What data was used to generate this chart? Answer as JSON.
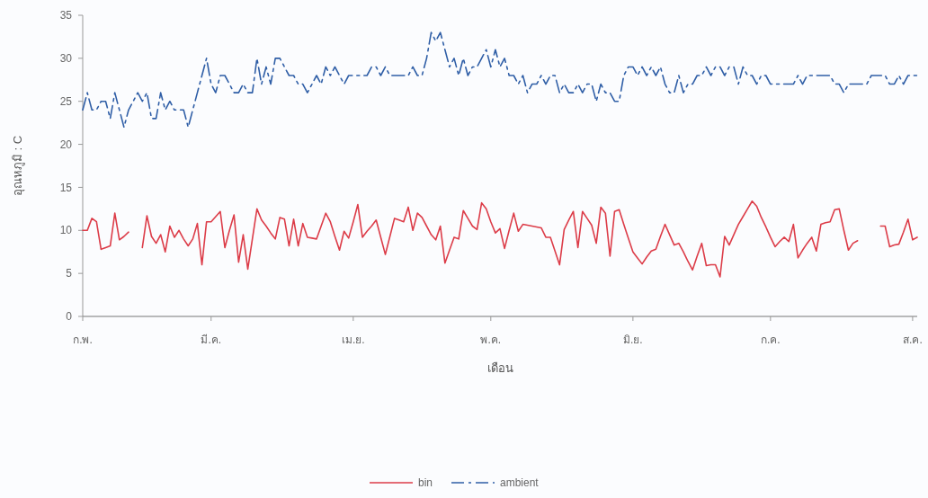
{
  "chart_data": {
    "type": "line",
    "xlabel": "เดือน",
    "ylabel": "อุณหภูมิ : C",
    "categories": [
      "ก.พ.",
      null,
      null,
      null,
      null,
      null,
      null,
      null,
      null,
      null,
      null,
      null,
      null,
      null,
      null,
      null,
      null,
      null,
      null,
      null,
      null,
      null,
      null,
      null,
      null,
      null,
      null,
      null,
      "มี.ค.",
      null,
      null,
      null,
      null,
      null,
      null,
      null,
      null,
      null,
      null,
      null,
      null,
      null,
      null,
      null,
      null,
      null,
      null,
      null,
      null,
      null,
      null,
      null,
      null,
      null,
      null,
      null,
      null,
      null,
      null,
      "เม.ย.",
      null,
      null,
      null,
      null,
      null,
      null,
      null,
      null,
      null,
      null,
      null,
      null,
      null,
      null,
      null,
      null,
      null,
      null,
      null,
      null,
      null,
      null,
      null,
      null,
      null,
      null,
      null,
      null,
      null,
      "พ.ค.",
      null,
      null,
      null,
      null,
      null,
      null,
      null,
      null,
      null,
      null,
      null,
      null,
      null,
      null,
      null,
      null,
      null,
      null,
      null,
      null,
      null,
      null,
      null,
      null,
      null,
      null,
      null,
      null,
      null,
      null,
      "มิ.ย.",
      null,
      null,
      null,
      null,
      null,
      null,
      null,
      null,
      null,
      null,
      null,
      null,
      null,
      null,
      null,
      null,
      null,
      null,
      null,
      null,
      null,
      null,
      null,
      null,
      null,
      null,
      null,
      null,
      null,
      "ก.ค.",
      null,
      null,
      null,
      null,
      null,
      null,
      null,
      null,
      null,
      null,
      null,
      null,
      null,
      null,
      null,
      null,
      null,
      null,
      null,
      null,
      null,
      null,
      null,
      null,
      null,
      null,
      null,
      null,
      null,
      null,
      "ส.ค.",
      null
    ],
    "ylim": [
      0,
      35
    ],
    "yticks": [
      0,
      5,
      10,
      15,
      20,
      25,
      30,
      35
    ],
    "grid": false,
    "legend": "bottom",
    "marker": "none",
    "series": [
      {
        "name": "bin",
        "color": "#dc3c48",
        "line_style": "solid",
        "values": [
          10,
          10,
          11.4,
          11,
          7.8,
          8,
          8.2,
          12,
          8.9,
          9.3,
          9.8,
          null,
          null,
          8,
          11.7,
          9.3,
          8.5,
          9.5,
          7.5,
          10.5,
          9.2,
          10,
          9,
          8.2,
          9,
          10.8,
          6,
          11,
          11,
          11.6,
          12.2,
          8,
          10,
          11.8,
          6.3,
          9.5,
          5.5,
          9,
          12.5,
          11.2,
          10.5,
          9.7,
          9,
          11.5,
          11.3,
          8.2,
          11.3,
          8.2,
          10.8,
          9.2,
          9.1,
          9,
          10.5,
          12,
          11,
          9.3,
          7.7,
          9.9,
          9.1,
          11,
          13,
          9.2,
          9.9,
          10.5,
          11.2,
          9.2,
          7.2,
          9.3,
          11.4,
          11.2,
          11,
          12.7,
          10,
          12,
          11.5,
          10.5,
          9.5,
          8.9,
          10.5,
          6.2,
          7.7,
          9.2,
          9,
          12.3,
          11.4,
          10.5,
          10.1,
          13.2,
          12.5,
          11,
          9.7,
          10.2,
          7.9,
          10,
          12,
          9.9,
          10.7,
          10.6,
          10.5,
          10.4,
          10.3,
          9.2,
          9.2,
          7.6,
          6,
          10.1,
          11.2,
          12.2,
          8,
          12.2,
          11.4,
          10.6,
          8.5,
          12.7,
          12,
          7,
          12.2,
          12.4,
          10.7,
          9.1,
          7.5,
          6.8,
          6.1,
          6.9,
          7.6,
          7.8,
          9.3,
          10.7,
          9.5,
          8.3,
          8.5,
          7.5,
          6.4,
          5.4,
          7,
          8.5,
          5.9,
          6,
          6,
          4.6,
          9.3,
          8.3,
          9.5,
          10.7,
          11.6,
          12.5,
          13.4,
          12.8,
          11.5,
          10.4,
          9.2,
          8.1,
          8.7,
          9.2,
          8.7,
          10.7,
          6.8,
          7.7,
          8.5,
          9.2,
          7.6,
          10.7,
          10.9,
          11,
          12.4,
          12.5,
          10,
          7.7,
          8.5,
          8.8,
          null,
          null,
          null,
          null,
          10.5,
          10.5,
          8.1,
          8.3,
          8.4,
          9.8,
          11.3,
          8.9,
          9.2
        ]
      },
      {
        "name": "ambient",
        "color": "#2f5ea6",
        "line_style": "dashed",
        "values": [
          24,
          26,
          24,
          24,
          25,
          25,
          23,
          26,
          24,
          22,
          24,
          25,
          26,
          25,
          26,
          23,
          23,
          26,
          24,
          25,
          24,
          24,
          24,
          22,
          24,
          26,
          28,
          30,
          27,
          26,
          28,
          28,
          27,
          26,
          26,
          27,
          26,
          26,
          30,
          27,
          29,
          27,
          30,
          30,
          29,
          28,
          28,
          27,
          27,
          26,
          27,
          28,
          27,
          29,
          28,
          29,
          28,
          27,
          28,
          28,
          28,
          28,
          28,
          29,
          29,
          28,
          29,
          28,
          28,
          28,
          28,
          28,
          29,
          28,
          28,
          30,
          33,
          32,
          33,
          31,
          29,
          30,
          28,
          30,
          28,
          29,
          29,
          30,
          31,
          29,
          31,
          29,
          30,
          28,
          28,
          27,
          28,
          26,
          27,
          27,
          28,
          27,
          28,
          28,
          26,
          27,
          26,
          26,
          27,
          26,
          27,
          27,
          25,
          27,
          26,
          26,
          25,
          25,
          28,
          29,
          29,
          28,
          29,
          28,
          29,
          28,
          29,
          27,
          26,
          26,
          28,
          26,
          27,
          27,
          28,
          28,
          29,
          28,
          29,
          29,
          28,
          29,
          29,
          27,
          29,
          28,
          28,
          27,
          28,
          28,
          27,
          27,
          27,
          27,
          27,
          27,
          28,
          27,
          28,
          28,
          28,
          28,
          28,
          28,
          27,
          27,
          26,
          27,
          27,
          27,
          27,
          27,
          28,
          28,
          28,
          28,
          27,
          27,
          28,
          27,
          28,
          28,
          28
        ]
      }
    ]
  }
}
